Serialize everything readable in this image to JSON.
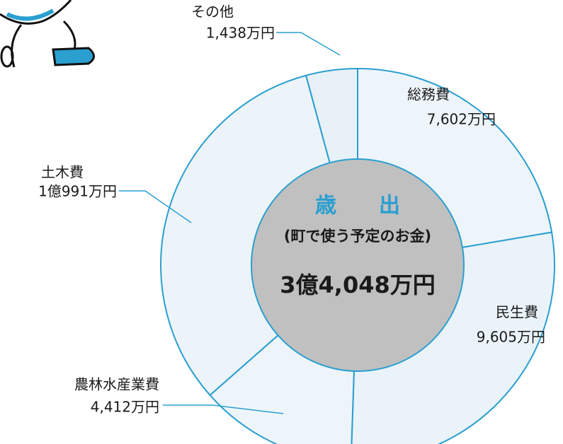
{
  "chart_data": {
    "type": "donut",
    "center_title": "歳　　出",
    "center_subtitle": "(町で使う予定のお金)",
    "center_total": "3億4,048万円",
    "categories": [
      "総務費",
      "民生費",
      "農林水産業費",
      "土木費",
      "その他"
    ],
    "values": [
      7602,
      9605,
      4412,
      10991,
      1438
    ],
    "value_labels": [
      "7,602万円",
      "9,605万円",
      "4,412万円",
      "1億991万円",
      "1,438万円"
    ],
    "colors": [
      "#eef5fa",
      "#eaf3f9",
      "#eef5fa",
      "#edf4f9",
      "#e8f1f8"
    ],
    "line_color": "#2a9fd0",
    "hole_color": "#c0c0c0"
  }
}
